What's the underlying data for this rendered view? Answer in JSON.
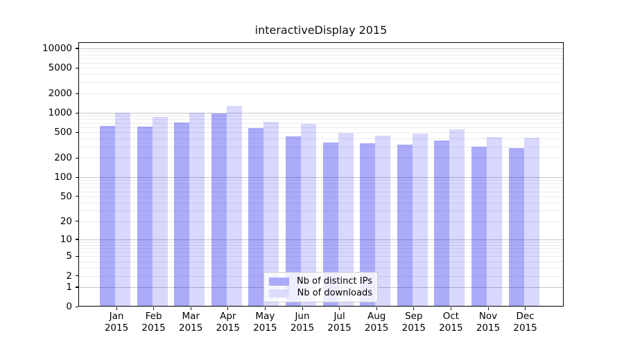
{
  "chart_data": {
    "type": "bar",
    "title": "interactiveDisplay 2015",
    "categories": [
      "Jan",
      "Feb",
      "Mar",
      "Apr",
      "May",
      "Jun",
      "Jul",
      "Aug",
      "Sep",
      "Oct",
      "Nov",
      "Dec"
    ],
    "x_tick_year": "2015",
    "series": [
      {
        "name": "Nb of distinct IPs",
        "fill": "rgba(8,8,240,0.34)",
        "swatch_hex": "#abaaf8",
        "values": [
          630,
          620,
          720,
          980,
          590,
          435,
          350,
          340,
          325,
          375,
          300,
          285
        ]
      },
      {
        "name": "Nb of downloads",
        "fill": "rgba(8,8,240,0.155)",
        "swatch_hex": "#dbdbfb",
        "values": [
          1000,
          870,
          1000,
          1280,
          730,
          680,
          490,
          445,
          480,
          555,
          425,
          415
        ]
      }
    ],
    "y_axis": {
      "scale": "log1p",
      "tick_values": [
        0,
        1,
        2,
        5,
        10,
        20,
        50,
        100,
        200,
        500,
        1000,
        2000,
        5000,
        10000
      ],
      "tick_labels": [
        "0",
        "1",
        "2",
        "5",
        "10",
        "20",
        "50",
        "100",
        "200",
        "500",
        "1000",
        "2000",
        "5000",
        "10000"
      ],
      "ylim": [
        0,
        12500
      ]
    },
    "grid": {
      "major_color": "#c6c6c6",
      "minor_color": "#ebebeb",
      "major_at": [
        1,
        10,
        100,
        1000,
        10000
      ],
      "minor_multiples": [
        2,
        3,
        4,
        5,
        6,
        7,
        8,
        9
      ]
    },
    "legend": {
      "items": [
        "Nb of distinct IPs",
        "Nb of downloads"
      ],
      "position": "lower-center-inside"
    }
  }
}
